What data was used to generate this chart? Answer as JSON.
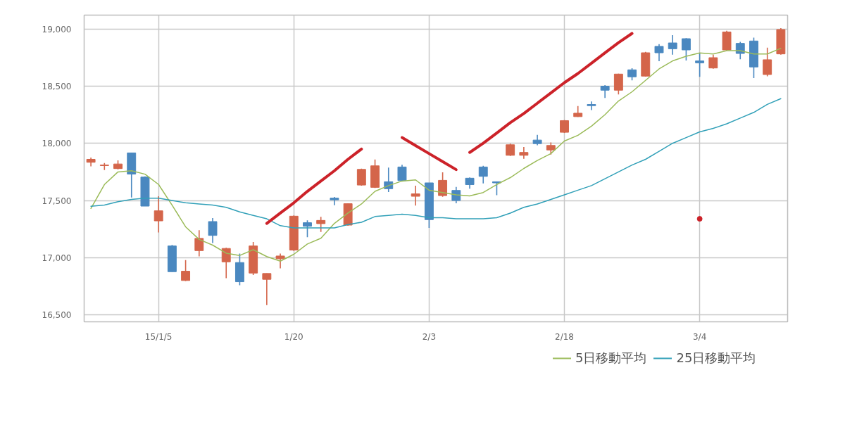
{
  "chart_data": {
    "type": "candlestick",
    "categories": [
      null,
      null,
      null,
      null,
      null,
      "15/1/5",
      null,
      null,
      null,
      null,
      null,
      null,
      null,
      null,
      null,
      "1/20",
      null,
      null,
      null,
      null,
      null,
      null,
      null,
      null,
      null,
      "2/3",
      null,
      null,
      null,
      null,
      null,
      null,
      null,
      null,
      null,
      "2/18",
      null,
      null,
      null,
      null,
      null,
      null,
      null,
      null,
      null,
      "3/4",
      null,
      null,
      null,
      null,
      null,
      null
    ],
    "ohlc": [
      [
        17834,
        17875,
        17799,
        17860
      ],
      [
        17805,
        17828,
        17766,
        17810
      ],
      [
        17779,
        17850,
        17772,
        17819
      ],
      [
        17916,
        17916,
        17527,
        17731
      ],
      [
        17705,
        17711,
        17451,
        17451
      ],
      [
        17322,
        17537,
        17220,
        17410
      ],
      [
        17103,
        17112,
        16878,
        16878
      ],
      [
        16801,
        16979,
        16796,
        16882
      ],
      [
        17062,
        17240,
        17011,
        17169
      ],
      [
        17316,
        17347,
        17128,
        17195
      ],
      [
        16964,
        17087,
        16821,
        17081
      ],
      [
        16958,
        17036,
        16760,
        16790
      ],
      [
        16866,
        17138,
        16848,
        17103
      ],
      [
        16811,
        16862,
        16586,
        16862
      ],
      [
        16991,
        17036,
        16907,
        17015
      ],
      [
        17067,
        17370,
        17060,
        17363
      ],
      [
        17306,
        17326,
        17179,
        17275
      ],
      [
        17298,
        17357,
        17226,
        17326
      ],
      [
        17521,
        17531,
        17459,
        17506
      ],
      [
        17285,
        17475,
        17279,
        17472
      ],
      [
        17635,
        17778,
        17629,
        17772
      ],
      [
        17615,
        17858,
        17609,
        17803
      ],
      [
        17664,
        17787,
        17574,
        17603
      ],
      [
        17793,
        17813,
        17666,
        17674
      ],
      [
        17537,
        17629,
        17455,
        17558
      ],
      [
        17654,
        17654,
        17261,
        17333
      ],
      [
        17543,
        17746,
        17533,
        17676
      ],
      [
        17588,
        17619,
        17476,
        17500
      ],
      [
        17695,
        17701,
        17603,
        17639
      ],
      [
        17793,
        17803,
        17650,
        17711
      ],
      [
        17664,
        17667,
        17547,
        17654
      ],
      [
        17895,
        17997,
        17889,
        17987
      ],
      [
        17895,
        17967,
        17864,
        17920
      ],
      [
        18028,
        18073,
        17983,
        17997
      ],
      [
        17942,
        18008,
        17901,
        17981
      ],
      [
        18096,
        18202,
        18090,
        18198
      ],
      [
        18233,
        18325,
        18230,
        18263
      ],
      [
        18339,
        18366,
        18290,
        18329
      ],
      [
        18499,
        18509,
        18396,
        18464
      ],
      [
        18464,
        18608,
        18427,
        18605
      ],
      [
        18642,
        18656,
        18550,
        18581
      ],
      [
        18587,
        18799,
        18583,
        18791
      ],
      [
        18847,
        18867,
        18718,
        18791
      ],
      [
        18877,
        18945,
        18775,
        18826
      ],
      [
        18914,
        18918,
        18724,
        18816
      ],
      [
        18720,
        18785,
        18581,
        18703
      ],
      [
        18658,
        18775,
        18652,
        18748
      ],
      [
        18816,
        18984,
        18810,
        18973
      ],
      [
        18873,
        18887,
        18734,
        18785
      ],
      [
        18894,
        18924,
        18570,
        18667
      ],
      [
        18601,
        18836,
        18585,
        18730
      ],
      [
        18781,
        19006,
        18775,
        18994
      ]
    ],
    "colors": [
      "#d4654a",
      "#d4654a",
      "#d4654a",
      "#4a88c0",
      "#4a88c0",
      "#d4654a",
      "#4a88c0",
      "#d4654a",
      "#d4654a",
      "#4a88c0",
      "#d4654a",
      "#4a88c0",
      "#d4654a",
      "#d4654a",
      "#d4654a",
      "#d4654a",
      "#4a88c0",
      "#d4654a",
      "#4a88c0",
      "#d4654a",
      "#d4654a",
      "#d4654a",
      "#4a88c0",
      "#4a88c0",
      "#d4654a",
      "#4a88c0",
      "#d4654a",
      "#4a88c0",
      "#4a88c0",
      "#4a88c0",
      "#4a88c0",
      "#d4654a",
      "#d4654a",
      "#4a88c0",
      "#d4654a",
      "#d4654a",
      "#d4654a",
      "#4a88c0",
      "#4a88c0",
      "#d4654a",
      "#4a88c0",
      "#d4654a",
      "#4a88c0",
      "#4a88c0",
      "#4a88c0",
      "#4a88c0",
      "#d4654a",
      "#d4654a",
      "#4a88c0",
      "#4a88c0",
      "#d4654a",
      "#d4654a"
    ],
    "series": [
      {
        "name": "5日移動平均",
        "type": "line",
        "color": "#9bbb59",
        "values": [
          17430,
          17640,
          17750,
          17760,
          17730,
          17640,
          17460,
          17270,
          17160,
          17110,
          17040,
          17020,
          17070,
          17010,
          16970,
          17030,
          17120,
          17170,
          17300,
          17390,
          17470,
          17580,
          17630,
          17670,
          17680,
          17590,
          17570,
          17550,
          17540,
          17570,
          17640,
          17700,
          17780,
          17850,
          17910,
          18020,
          18070,
          18150,
          18250,
          18370,
          18450,
          18550,
          18650,
          18720,
          18760,
          18790,
          18780,
          18810,
          18810,
          18780,
          18780,
          18830
        ]
      },
      {
        "name": "25日移動平均",
        "type": "line",
        "color": "#31a0b8",
        "values": [
          17450,
          17460,
          17490,
          17510,
          17520,
          17520,
          17500,
          17480,
          17470,
          17460,
          17440,
          17400,
          17370,
          17340,
          17280,
          17260,
          17260,
          17260,
          17260,
          17290,
          17310,
          17360,
          17370,
          17380,
          17370,
          17350,
          17350,
          17340,
          17340,
          17340,
          17350,
          17390,
          17440,
          17470,
          17510,
          17550,
          17590,
          17630,
          17690,
          17750,
          17810,
          17860,
          17930,
          18000,
          18050,
          18100,
          18130,
          18170,
          18220,
          18270,
          18340,
          18390
        ]
      },
      {
        "type": "line",
        "color": "#cc2229",
        "values": [
          null,
          null,
          null,
          null,
          null,
          null,
          null,
          null,
          null,
          null,
          null,
          null,
          null,
          17300,
          17390,
          17480,
          17580,
          17670,
          17760,
          17860,
          17950,
          null,
          null,
          null,
          null,
          null,
          null,
          null,
          null,
          null,
          null,
          null,
          null,
          null,
          null,
          null,
          null,
          null,
          null,
          null,
          null,
          null,
          null,
          null,
          null,
          null,
          null,
          null,
          null,
          null,
          null,
          null
        ]
      },
      {
        "type": "line",
        "color": "#cc2229",
        "values": [
          null,
          null,
          null,
          null,
          null,
          null,
          null,
          null,
          null,
          null,
          null,
          null,
          null,
          null,
          null,
          null,
          null,
          null,
          null,
          null,
          null,
          null,
          null,
          18050,
          17980,
          17910,
          17840,
          17770,
          null,
          null,
          null,
          null,
          null,
          null,
          null,
          null,
          null,
          null,
          null,
          null,
          null,
          null,
          null,
          null,
          null,
          null,
          null,
          null,
          null,
          null,
          null,
          null
        ]
      },
      {
        "type": "line",
        "color": "#cc2229",
        "values": [
          null,
          null,
          null,
          null,
          null,
          null,
          null,
          null,
          null,
          null,
          null,
          null,
          null,
          null,
          null,
          null,
          null,
          null,
          null,
          null,
          null,
          null,
          null,
          null,
          null,
          null,
          null,
          null,
          17920,
          18000,
          18090,
          18180,
          18260,
          18350,
          18440,
          18530,
          18610,
          18700,
          18790,
          18880,
          18960,
          null,
          null,
          null,
          null,
          null,
          null,
          null,
          null,
          null,
          null,
          null
        ]
      },
      {
        "type": "scatter",
        "color": "#cc2229",
        "marker": "circle",
        "values": [
          null,
          null,
          null,
          null,
          null,
          null,
          null,
          null,
          null,
          null,
          null,
          null,
          null,
          null,
          null,
          null,
          null,
          null,
          null,
          null,
          null,
          null,
          null,
          null,
          null,
          null,
          null,
          null,
          null,
          null,
          null,
          null,
          null,
          null,
          null,
          null,
          null,
          null,
          null,
          null,
          null,
          null,
          null,
          null,
          null,
          17340,
          null,
          null,
          null,
          null,
          null,
          null
        ]
      }
    ],
    "ylim": [
      16440,
      19120
    ],
    "yticks": [
      {
        "value": 16500,
        "label": "16,500"
      },
      {
        "value": 17000,
        "label": "17,000"
      },
      {
        "value": 17500,
        "label": "17,500"
      },
      {
        "value": 18000,
        "label": "18,000"
      },
      {
        "value": 18500,
        "label": "18,500"
      },
      {
        "value": 19000,
        "label": "19,000"
      }
    ],
    "grid": true,
    "legend": "bottom right"
  }
}
